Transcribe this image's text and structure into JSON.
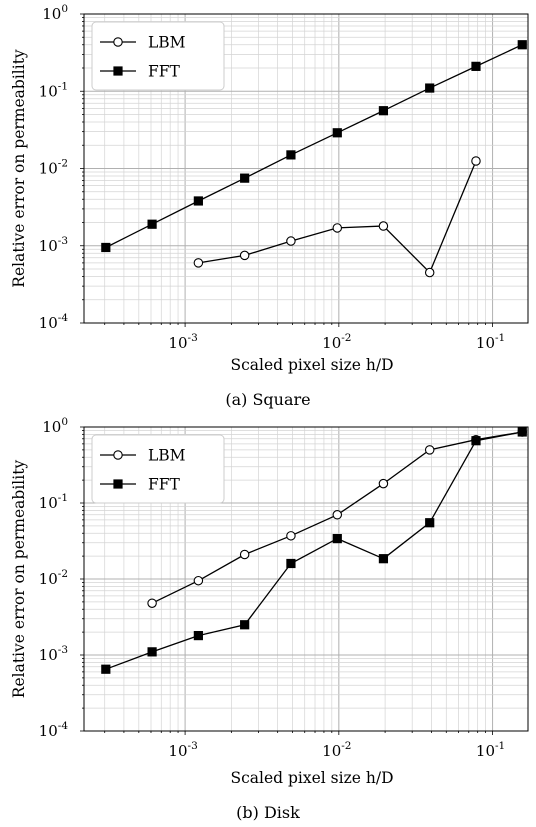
{
  "chart_data": [
    {
      "type": "line",
      "caption": "(a) Square",
      "xlabel": "Scaled pixel size h/D",
      "ylabel": "Relative error on permeability",
      "xscale": "log",
      "yscale": "log",
      "xlim": [
        0.00022,
        0.17
      ],
      "ylim": [
        0.0001,
        1
      ],
      "grid": "both major and minor",
      "legend": "top-left",
      "x_ticks": [
        "10^-3",
        "10^-2",
        "10^-1"
      ],
      "y_ticks": [
        "10^-4",
        "10^-3",
        "10^-2",
        "10^-1",
        "10^0"
      ],
      "series": [
        {
          "name": "LBM",
          "marker": "open-circle",
          "x": [
            0.00122,
            0.00244,
            0.00488,
            0.00977,
            0.0195,
            0.039,
            0.078
          ],
          "y": [
            0.0006,
            0.00075,
            0.00115,
            0.0017,
            0.0018,
            0.00045,
            0.0125
          ]
        },
        {
          "name": "FFT",
          "marker": "filled-square",
          "x": [
            0.000305,
            0.00061,
            0.00122,
            0.00244,
            0.00488,
            0.00977,
            0.0195,
            0.039,
            0.078,
            0.156
          ],
          "y": [
            0.00095,
            0.0019,
            0.0038,
            0.0075,
            0.015,
            0.029,
            0.056,
            0.11,
            0.21,
            0.4
          ]
        }
      ]
    },
    {
      "type": "line",
      "caption": "(b) Disk",
      "xlabel": "Scaled pixel size h/D",
      "ylabel": "Relative error on permeability",
      "xscale": "log",
      "yscale": "log",
      "xlim": [
        0.00022,
        0.17
      ],
      "ylim": [
        0.0001,
        1
      ],
      "grid": "both major and minor",
      "legend": "top-left",
      "x_ticks": [
        "10^-3",
        "10^-2",
        "10^-1"
      ],
      "y_ticks": [
        "10^-4",
        "10^-3",
        "10^-2",
        "10^-1",
        "10^0"
      ],
      "series": [
        {
          "name": "LBM",
          "marker": "open-circle",
          "x": [
            0.00061,
            0.00122,
            0.00244,
            0.00488,
            0.00977,
            0.0195,
            0.039,
            0.078,
            0.156
          ],
          "y": [
            0.0048,
            0.0095,
            0.021,
            0.037,
            0.07,
            0.18,
            0.5,
            0.68,
            0.86
          ]
        },
        {
          "name": "FFT",
          "marker": "filled-square",
          "x": [
            0.000305,
            0.00061,
            0.00122,
            0.00244,
            0.00488,
            0.00977,
            0.0195,
            0.039,
            0.078,
            0.156
          ],
          "y": [
            0.00065,
            0.0011,
            0.0018,
            0.0025,
            0.016,
            0.034,
            0.0185,
            0.055,
            0.66,
            0.86
          ]
        }
      ]
    }
  ]
}
